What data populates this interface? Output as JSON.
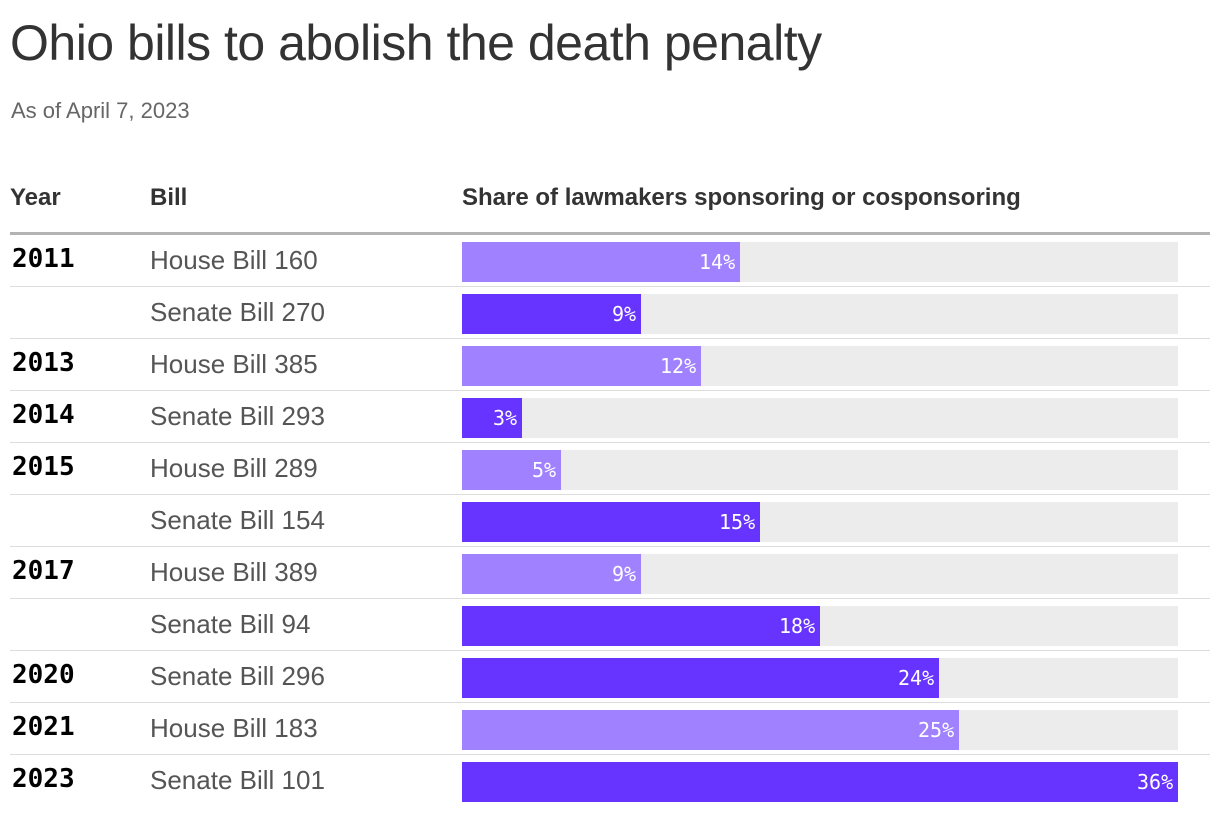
{
  "title": "Ohio bills to abolish the death penalty",
  "subtitle": "As of April 7, 2023",
  "headers": {
    "year": "Year",
    "bill": "Bill",
    "share": "Share of lawmakers sponsoring or cosponsoring"
  },
  "colors": {
    "house": "#a081ff",
    "senate": "#6633ff",
    "track": "#ececec"
  },
  "chart_data": {
    "type": "bar",
    "orientation": "horizontal",
    "title": "Ohio bills to abolish the death penalty",
    "subtitle": "As of April 7, 2023",
    "xlabel": "Share of lawmakers sponsoring or cosponsoring",
    "xlim": [
      0,
      36
    ],
    "rows": [
      {
        "year": "2011",
        "bill": "House Bill 160",
        "value": 14,
        "label": "14%"
      },
      {
        "year": "",
        "bill": "Senate Bill 270",
        "value": 9,
        "label": "9%"
      },
      {
        "year": "2013",
        "bill": "House Bill 385",
        "value": 12,
        "label": "12%"
      },
      {
        "year": "2014",
        "bill": "Senate Bill 293",
        "value": 3,
        "label": "3%"
      },
      {
        "year": "2015",
        "bill": "House Bill 289",
        "value": 5,
        "label": "5%"
      },
      {
        "year": "",
        "bill": "Senate Bill 154",
        "value": 15,
        "label": "15%"
      },
      {
        "year": "2017",
        "bill": "House Bill 389",
        "value": 9,
        "label": "9%"
      },
      {
        "year": "",
        "bill": "Senate Bill 94",
        "value": 18,
        "label": "18%"
      },
      {
        "year": "2020",
        "bill": "Senate Bill 296",
        "value": 24,
        "label": "24%"
      },
      {
        "year": "2021",
        "bill": "House Bill 183",
        "value": 25,
        "label": "25%"
      },
      {
        "year": "2023",
        "bill": "Senate Bill 101",
        "value": 36,
        "label": "36%"
      }
    ]
  }
}
